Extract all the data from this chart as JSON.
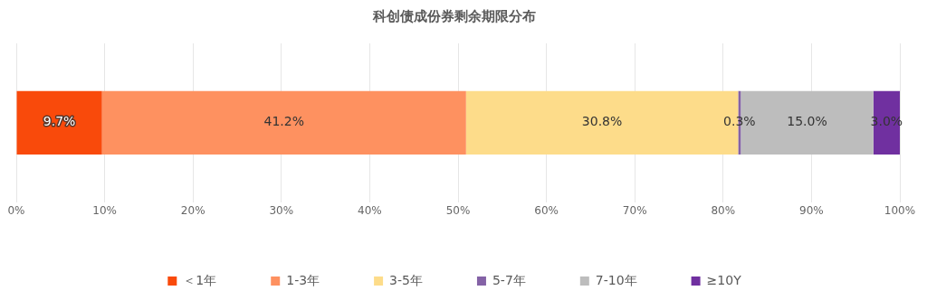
{
  "chart_data": {
    "type": "bar",
    "title": "科创债成份券剩余期限分布",
    "orientation": "horizontal",
    "stacked": true,
    "categories": [
      null
    ],
    "series": [
      {
        "name": "＜1年",
        "color": "#f94a0b",
        "values": [
          9.7
        ],
        "value_labels": [
          "9.7%"
        ]
      },
      {
        "name": "1-3年",
        "color": "#fe9160",
        "values": [
          41.2
        ],
        "value_labels": [
          "41.2%"
        ]
      },
      {
        "name": "3-5年",
        "color": "#fddc8a",
        "values": [
          30.8
        ],
        "value_labels": [
          "30.8%"
        ]
      },
      {
        "name": "5-7年",
        "color": "#8462a6",
        "values": [
          0.3
        ],
        "value_labels": [
          "0.3%"
        ]
      },
      {
        "name": "7-10年",
        "color": "#bdbdbd",
        "values": [
          15.0
        ],
        "value_labels": [
          "15.0%"
        ]
      },
      {
        "name": "≥10Y",
        "color": "#7030a0",
        "values": [
          3.0
        ],
        "value_labels": [
          "3.0%"
        ]
      }
    ],
    "xlim": [
      0,
      100
    ],
    "xticks": [
      {
        "value": 0,
        "label": "0%"
      },
      {
        "value": 10,
        "label": "10%"
      },
      {
        "value": 20,
        "label": "20%"
      },
      {
        "value": 30,
        "label": "30%"
      },
      {
        "value": 40,
        "label": "40%"
      },
      {
        "value": 50,
        "label": "50%"
      },
      {
        "value": 60,
        "label": "60%"
      },
      {
        "value": 70,
        "label": "70%"
      },
      {
        "value": 80,
        "label": "80%"
      },
      {
        "value": 90,
        "label": "90%"
      },
      {
        "value": 100,
        "label": "100%"
      }
    ],
    "grid": "x",
    "legend": "bottom",
    "tick_labels": "x"
  }
}
